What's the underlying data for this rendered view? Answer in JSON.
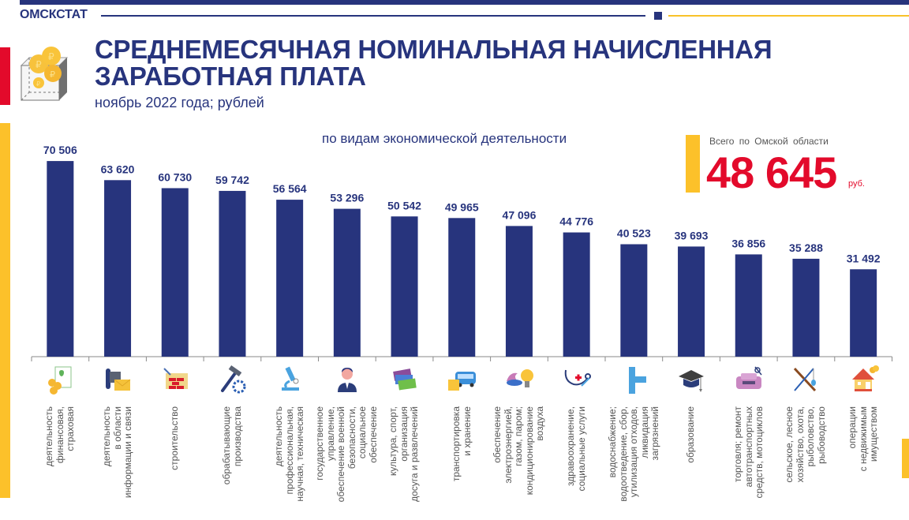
{
  "header": {
    "brand": "ОМСКСТАТ",
    "title_line1": "СРЕДНЕМЕСЯЧНАЯ НОМИНАЛЬНАЯ НАЧИСЛЕННАЯ",
    "title_line2": "ЗАРАБОТНАЯ ПЛАТА",
    "subtitle": "ноябрь 2022 года; рублей"
  },
  "total": {
    "label": "Всего по Омской области",
    "value": "48 645",
    "unit": "руб."
  },
  "colors": {
    "bar": "#27347d",
    "accent_red": "#e30a2b",
    "accent_yellow": "#fcc12a"
  },
  "chart_data": {
    "type": "bar",
    "title": "по видам экономической деятельности",
    "xlabel": "",
    "ylabel": "",
    "ylim": [
      0,
      72000
    ],
    "grid": false,
    "categories": [
      "деятельность финансовая, страховая",
      "деятельность в области информации и связи",
      "строительство",
      "обрабатывающие производства",
      "деятельность профессиональная, научная, техническая",
      "государственное управление, обеспечение военной безопасности, социальное обеспечение",
      "культура, спорт, организация досуга и развлечений",
      "транспортировка и хранение",
      "обеспечение электроэнергией, газом, паром; кондиционирование воздуха",
      "здравоохранение, социальные услуги",
      "водоснабжение; водоотведение, сбор, утилизация отходов, ликвидация загрязнений",
      "образование",
      "торговля; ремонт автотранспортных средств, мотоциклов",
      "сельское, лесное хозяйство, охота, рыболовство, рыбоводство",
      "операции с недвижимым имуществом"
    ],
    "category_lines": [
      "деятельность\nфинансовая,\nстраховая",
      "деятельность\nв области\nинформации и связи",
      "строительство",
      "обрабатывающие\nпроизводства",
      "деятельность\nпрофессиональная,\nнаучная, техническая",
      "государственное\nуправление,\nобеспечение военной\nбезопасности,\nсоциальное\nобеспечение",
      "культура, спорт,\nорганизация\nдосуга  и развлечений",
      "транспортировка\nи хранение",
      "обеспечение\nэлектроэнергией,\nгазом, паром;\nкондиционирование\nвоздуха",
      "здравоохранение,\nсоциальные  услуги",
      "водоснабжение;\nводоотведение, сбор,\nутилизация отходов,\nликвидация\nзагрязнений",
      "образование",
      "торговля; ремонт\nавтотранспортных\nсредств, мотоциклов",
      "сельское, лесное\nхозяйство, охота,\nрыболовство,\nрыбоводство",
      "операции\nс недвижимым\nимуществом"
    ],
    "icons": [
      "finance-document-coins-icon",
      "telephone-envelope-icon",
      "brick-wall-trowel-icon",
      "hammer-gear-icon",
      "microscope-icon",
      "official-person-icon",
      "tickets-icon",
      "bus-box-icon",
      "gas-flame-lightbulb-icon",
      "stethoscope-syringe-icon",
      "water-pipe-icon",
      "graduation-cap-icon",
      "car-wrench-icon",
      "rifle-fishing-rod-icon",
      "house-coins-icon"
    ],
    "values": [
      70506,
      63620,
      60730,
      59742,
      56564,
      53296,
      50542,
      49965,
      47096,
      44776,
      40523,
      39693,
      36856,
      35288,
      31492
    ],
    "value_labels": [
      "70 506",
      "63 620",
      "60 730",
      "59 742",
      "56 564",
      "53 296",
      "50 542",
      "49 965",
      "47 096",
      "44 776",
      "40 523",
      "39 693",
      "36 856",
      "35 288",
      "31 492"
    ]
  }
}
